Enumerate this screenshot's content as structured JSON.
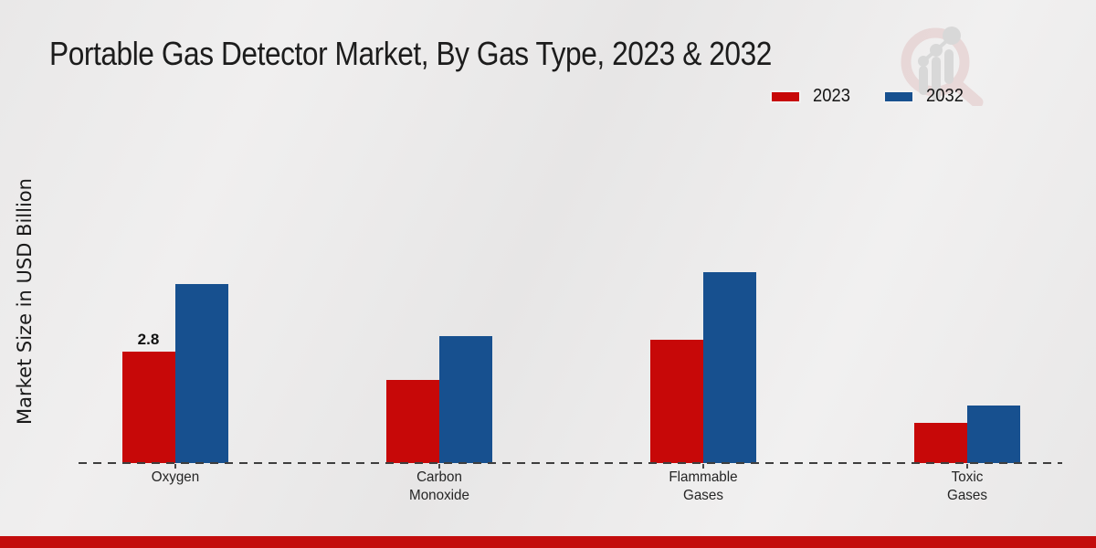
{
  "chart_data": {
    "type": "bar",
    "title": "Portable Gas Detector Market, By Gas Type, 2023 & 2032",
    "xlabel": "",
    "ylabel": "Market Size in USD Billion",
    "categories": [
      "Oxygen",
      "Carbon Monoxide",
      "Flammable Gases",
      "Toxic Gases"
    ],
    "series": [
      {
        "name": "2023",
        "color": "#c70808",
        "values": [
          2.8,
          2.1,
          3.1,
          1.0
        ]
      },
      {
        "name": "2032",
        "color": "#17508f",
        "values": [
          4.5,
          3.2,
          4.8,
          1.45
        ]
      }
    ],
    "data_labels": [
      {
        "series": "2023",
        "category": "Oxygen",
        "text": "2.8"
      }
    ],
    "legend": {
      "position": "top-right",
      "entries": [
        "2023",
        "2032"
      ]
    },
    "axis_style": "dashed-baseline",
    "grid": false,
    "ylim": [
      0,
      5
    ]
  },
  "colors": {
    "series_2023": "#c70808",
    "series_2032": "#17508f",
    "footer_bar": "#c30d0d",
    "axis": "#3e3e3e",
    "watermark_pink": "#e2c6c6",
    "watermark_gray": "#c6c6c6"
  }
}
